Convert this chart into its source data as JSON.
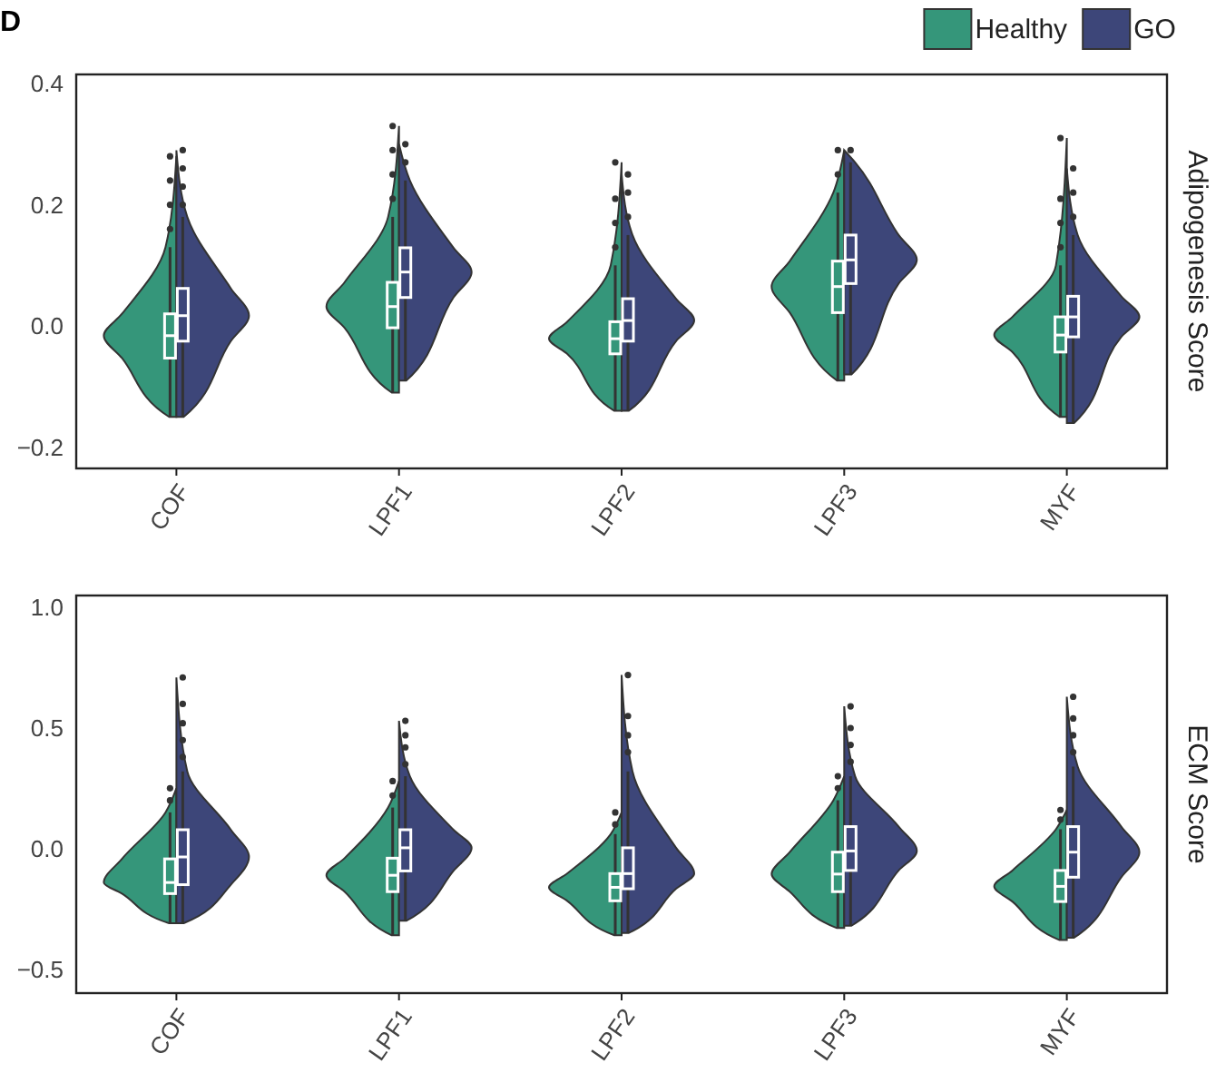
{
  "chart_data": [
    {
      "type": "box",
      "annotations": [
        "D"
      ],
      "ylabel": "Adipogenesis Score",
      "categories": [
        "COF",
        "LPF1",
        "LPF2",
        "LPF3",
        "MYF"
      ],
      "ylim": [
        -0.235,
        0.415
      ],
      "yticks": [
        {
          "value": -0.2,
          "label": "−0.2"
        },
        {
          "value": 0,
          "label": "0.0"
        },
        {
          "value": 0.2,
          "label": "0.2"
        },
        {
          "value": 0.4,
          "label": "0.4"
        }
      ],
      "legend": "top right",
      "grid": false,
      "series": [
        {
          "name": "Healthy",
          "color": "#35967a",
          "boxes": [
            {
              "low": -0.15,
              "q1": -0.053,
              "median": -0.016,
              "q3": 0.02,
              "high": 0.13,
              "outliers": [
                0.16,
                0.2,
                0.24,
                0.28
              ]
            },
            {
              "low": -0.11,
              "q1": -0.003,
              "median": 0.032,
              "q3": 0.072,
              "high": 0.18,
              "outliers": [
                0.21,
                0.25,
                0.29,
                0.33
              ]
            },
            {
              "low": -0.14,
              "q1": -0.046,
              "median": -0.021,
              "q3": 0.007,
              "high": 0.1,
              "outliers": [
                0.13,
                0.17,
                0.21,
                0.27
              ]
            },
            {
              "low": -0.09,
              "q1": 0.022,
              "median": 0.065,
              "q3": 0.107,
              "high": 0.22,
              "outliers": [
                0.25,
                0.29
              ]
            },
            {
              "low": -0.15,
              "q1": -0.043,
              "median": -0.015,
              "q3": 0.015,
              "high": 0.1,
              "outliers": [
                0.13,
                0.17,
                0.21,
                0.31
              ]
            }
          ]
        },
        {
          "name": "GO",
          "color": "#3d4679",
          "boxes": [
            {
              "low": -0.15,
              "q1": -0.025,
              "median": 0.017,
              "q3": 0.062,
              "high": 0.18,
              "outliers": [
                0.2,
                0.23,
                0.26,
                0.29
              ]
            },
            {
              "low": -0.09,
              "q1": 0.047,
              "median": 0.089,
              "q3": 0.129,
              "high": 0.24,
              "outliers": [
                0.27,
                0.3
              ]
            },
            {
              "low": -0.14,
              "q1": -0.025,
              "median": 0.009,
              "q3": 0.045,
              "high": 0.15,
              "outliers": [
                0.18,
                0.22,
                0.25
              ]
            },
            {
              "low": -0.08,
              "q1": 0.07,
              "median": 0.109,
              "q3": 0.15,
              "high": 0.27,
              "outliers": [
                0.29
              ]
            },
            {
              "low": -0.16,
              "q1": -0.018,
              "median": 0.015,
              "q3": 0.049,
              "high": 0.15,
              "outliers": [
                0.18,
                0.22,
                0.26
              ]
            }
          ]
        }
      ]
    },
    {
      "type": "box",
      "ylabel": "ECM Score",
      "categories": [
        "COF",
        "LPF1",
        "LPF2",
        "LPF3",
        "MYF"
      ],
      "ylim": [
        -0.6,
        1.05
      ],
      "yticks": [
        {
          "value": -0.5,
          "label": "−0.5"
        },
        {
          "value": 0,
          "label": "0.0"
        },
        {
          "value": 0.5,
          "label": "0.5"
        },
        {
          "value": 1,
          "label": "1.0"
        }
      ],
      "grid": false,
      "series": [
        {
          "color": "#35967a",
          "boxes": [
            {
              "low": -0.31,
              "q1": -0.187,
              "median": -0.141,
              "q3": -0.043,
              "high": 0.15,
              "outliers": [
                0.2,
                0.25
              ]
            },
            {
              "low": -0.36,
              "q1": -0.179,
              "median": -0.111,
              "q3": -0.04,
              "high": 0.17,
              "outliers": [
                0.22,
                0.28
              ]
            },
            {
              "low": -0.36,
              "q1": -0.217,
              "median": -0.161,
              "q3": -0.104,
              "high": 0.06,
              "outliers": [
                0.1,
                0.15
              ]
            },
            {
              "low": -0.33,
              "q1": -0.179,
              "median": -0.106,
              "q3": -0.015,
              "high": 0.2,
              "outliers": [
                0.25,
                0.3
              ]
            },
            {
              "low": -0.38,
              "q1": -0.22,
              "median": -0.157,
              "q3": -0.091,
              "high": 0.08,
              "outliers": [
                0.12,
                0.16
              ]
            }
          ]
        },
        {
          "color": "#3d4679",
          "boxes": [
            {
              "low": -0.31,
              "q1": -0.15,
              "median": -0.035,
              "q3": 0.078,
              "high": 0.32,
              "outliers": [
                0.38,
                0.45,
                0.52,
                0.6,
                0.71
              ]
            },
            {
              "low": -0.3,
              "q1": -0.093,
              "median": 0.003,
              "q3": 0.078,
              "high": 0.3,
              "outliers": [
                0.35,
                0.42,
                0.47,
                0.53
              ]
            },
            {
              "low": -0.35,
              "q1": -0.167,
              "median": -0.104,
              "q3": 0.003,
              "high": 0.32,
              "outliers": [
                0.4,
                0.47,
                0.55,
                0.72
              ]
            },
            {
              "low": -0.32,
              "q1": -0.091,
              "median": -0.01,
              "q3": 0.091,
              "high": 0.3,
              "outliers": [
                0.36,
                0.43,
                0.5,
                0.59
              ]
            },
            {
              "low": -0.37,
              "q1": -0.119,
              "median": -0.015,
              "q3": 0.091,
              "high": 0.34,
              "outliers": [
                0.4,
                0.47,
                0.54,
                0.63
              ]
            }
          ]
        }
      ]
    }
  ]
}
